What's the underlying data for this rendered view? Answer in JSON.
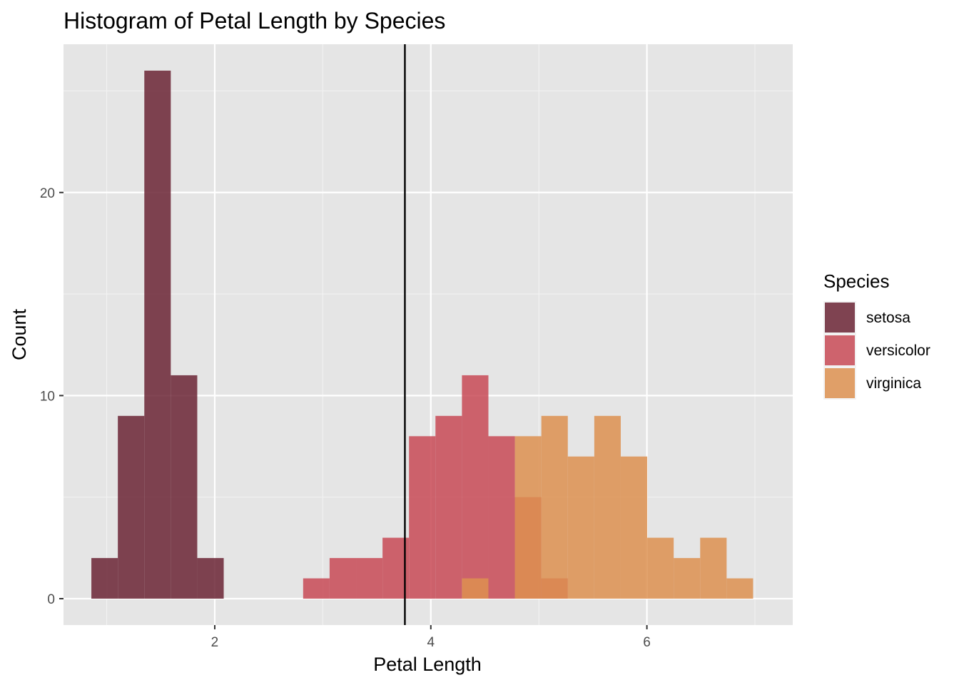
{
  "chart_data": {
    "type": "histogram",
    "title": "Histogram of Petal Length by Species",
    "xlabel": "Petal Length",
    "ylabel": "Count",
    "xlim": [
      0.6,
      7.35
    ],
    "ylim": [
      -1.3,
      27.3
    ],
    "x_ticks": [
      2,
      4,
      6
    ],
    "y_ticks": [
      0,
      10,
      20
    ],
    "x_minor_ticks": [
      1,
      3,
      5,
      7
    ],
    "y_minor_ticks": [
      5,
      15,
      25
    ],
    "grid": true,
    "bin_width": 0.245,
    "vline": {
      "x": 3.76,
      "color": "#000000"
    },
    "legend": {
      "title": "Species",
      "position": "right"
    },
    "series": [
      {
        "name": "setosa",
        "color": "#6b2535",
        "bins": [
          {
            "x0": 0.858,
            "count": 2
          },
          {
            "x0": 1.103,
            "count": 9
          },
          {
            "x0": 1.348,
            "count": 26
          },
          {
            "x0": 1.593,
            "count": 11
          },
          {
            "x0": 1.838,
            "count": 2
          }
        ]
      },
      {
        "name": "versicolor",
        "color": "#c84a56",
        "bins": [
          {
            "x0": 2.818,
            "count": 1
          },
          {
            "x0": 3.063,
            "count": 2
          },
          {
            "x0": 3.308,
            "count": 2
          },
          {
            "x0": 3.553,
            "count": 3
          },
          {
            "x0": 3.798,
            "count": 8
          },
          {
            "x0": 4.043,
            "count": 9
          },
          {
            "x0": 4.288,
            "count": 11
          },
          {
            "x0": 4.533,
            "count": 8
          },
          {
            "x0": 4.778,
            "count": 5
          },
          {
            "x0": 5.023,
            "count": 1
          }
        ]
      },
      {
        "name": "virginica",
        "color": "#dd9050",
        "bins": [
          {
            "x0": 4.288,
            "count": 1
          },
          {
            "x0": 4.778,
            "count": 8
          },
          {
            "x0": 5.023,
            "count": 9
          },
          {
            "x0": 5.268,
            "count": 7
          },
          {
            "x0": 5.513,
            "count": 9
          },
          {
            "x0": 5.758,
            "count": 7
          },
          {
            "x0": 6.003,
            "count": 3
          },
          {
            "x0": 6.248,
            "count": 2
          },
          {
            "x0": 6.493,
            "count": 3
          },
          {
            "x0": 6.738,
            "count": 1
          }
        ]
      }
    ]
  }
}
